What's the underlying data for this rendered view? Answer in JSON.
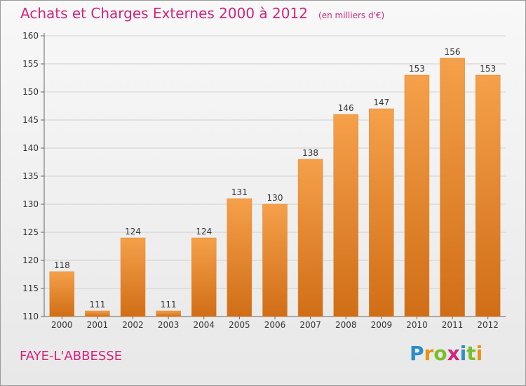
{
  "title": "Achats et Charges Externes 2000 à 2012",
  "subtitle": "(en milliers d'€)",
  "place": "FAYE-L'ABBESSE",
  "brand": {
    "text": "Proxiti",
    "letters": [
      "P",
      "r",
      "o",
      "x",
      "i",
      "t",
      "i"
    ],
    "letter_colors": [
      "#2a8ec9",
      "#e59216",
      "#7abd2a",
      "#d4237a",
      "#2a8ec9",
      "#7abd2a",
      "#e59216"
    ]
  },
  "colors": {
    "accent": "#d4237a",
    "bar": "#f0922c",
    "bar_dark": "#d46f14"
  },
  "chart_data": {
    "type": "bar",
    "categories": [
      "2000",
      "2001",
      "2002",
      "2003",
      "2004",
      "2005",
      "2006",
      "2007",
      "2008",
      "2009",
      "2010",
      "2011",
      "2012"
    ],
    "values": [
      118,
      111,
      124,
      111,
      124,
      131,
      130,
      138,
      146,
      147,
      153,
      156,
      153
    ],
    "ylim": [
      110,
      160
    ],
    "yticks": [
      110,
      115,
      120,
      125,
      130,
      135,
      140,
      145,
      150,
      155,
      160
    ],
    "grid": true
  }
}
